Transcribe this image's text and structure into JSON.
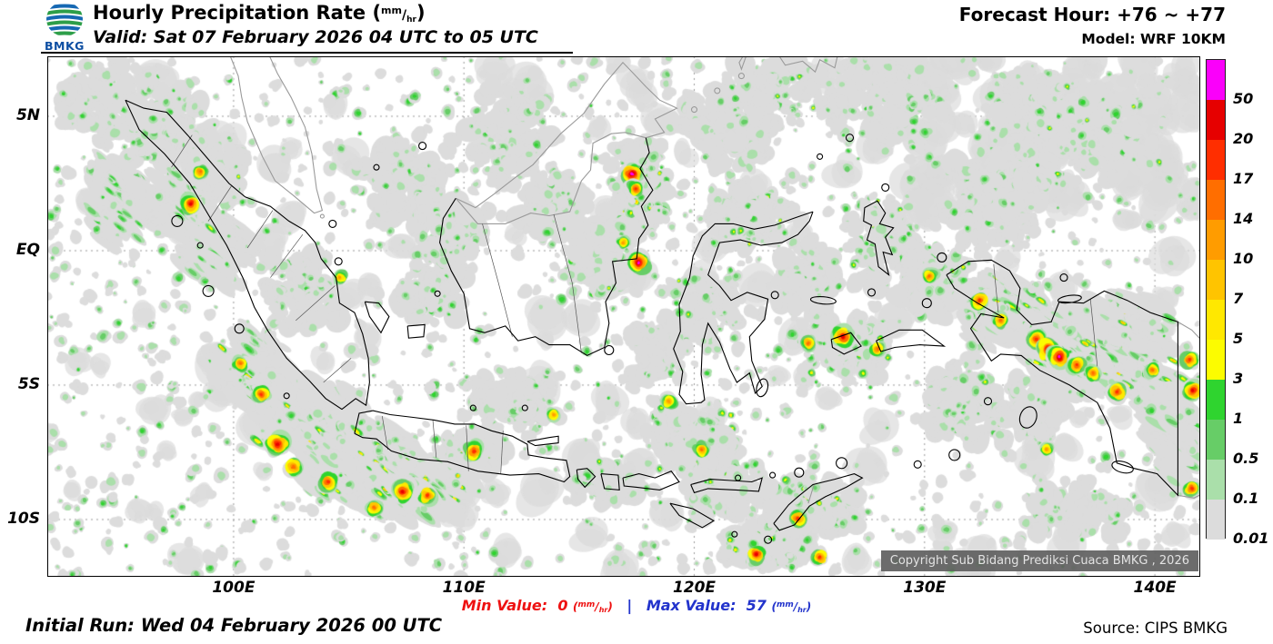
{
  "colors": {
    "accent_min": "#ee1111",
    "accent_max": "#2233cc"
  },
  "header": {
    "logo_text": "BMKG",
    "title_prefix": "Hourly Precipitation Rate (",
    "title_suffix": ")",
    "valid_line": "Valid: Sat 07 February 2026 04 UTC to 05 UTC",
    "forecast_hour": "Forecast Hour: +76 ~ +77",
    "model": "Model: WRF 10KM"
  },
  "units": {
    "num": "mm",
    "slash": "/",
    "den": "hr"
  },
  "map": {
    "y_ticks": [
      {
        "label": "5N",
        "lat": 5
      },
      {
        "label": "EQ",
        "lat": 0
      },
      {
        "label": "5S",
        "lat": -5
      },
      {
        "label": "10S",
        "lat": -10
      }
    ],
    "x_ticks": [
      {
        "label": "100E",
        "lon": 100
      },
      {
        "label": "110E",
        "lon": 110
      },
      {
        "label": "120E",
        "lon": 120
      },
      {
        "label": "130E",
        "lon": 130
      },
      {
        "label": "140E",
        "lon": 140
      }
    ],
    "copyright": "Copyright Sub Bidang Prediksi Cuaca BMKG , 2026"
  },
  "legend": {
    "levels": [
      "50",
      "20",
      "17",
      "14",
      "10",
      "7",
      "5",
      "3",
      "1",
      "0.5",
      "0.1",
      "0.01"
    ],
    "band_colors": [
      "#fa00fa",
      "#e60000",
      "#ff2e00",
      "#ff6e00",
      "#ff9c00",
      "#ffc400",
      "#ffe800",
      "#fcfc00",
      "#2fd42f",
      "#67cd67",
      "#aadfaa",
      "#dcdcdc"
    ]
  },
  "footer": {
    "initial_run": "Initial Run: Wed 04 February 2026 00 UTC",
    "min_label": "Min Value:",
    "min_value": "0",
    "separator": "|",
    "max_label": "Max Value:",
    "max_value": "57",
    "unit_open": "(",
    "unit_close": ")",
    "source": "Source: CIPS BMKG"
  }
}
